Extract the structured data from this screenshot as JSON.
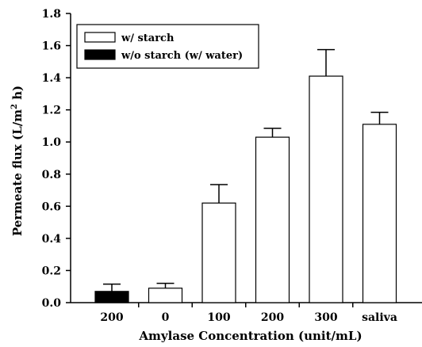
{
  "chart_data": {
    "type": "bar",
    "xlabel": "Amylase Concentration (unit/mL)",
    "ylabel_main": "Permeate flux (L/m",
    "ylabel_sup": "2",
    "ylabel_tail": " h)",
    "ylim": [
      0,
      1.8
    ],
    "yticks": [
      "0.0",
      "0.2",
      "0.4",
      "0.6",
      "0.8",
      "1.0",
      "1.2",
      "1.4",
      "1.6",
      "1.8"
    ],
    "categories": [
      "200",
      "0",
      "100",
      "200",
      "300",
      "saliva"
    ],
    "values": [
      0.07,
      0.09,
      0.62,
      1.03,
      1.41,
      1.11
    ],
    "errors": [
      0.045,
      0.03,
      0.115,
      0.055,
      0.165,
      0.075
    ],
    "bar_series": [
      1,
      0,
      0,
      0,
      0,
      0
    ],
    "series": [
      {
        "name": "w/ starch",
        "color": "#ffffff"
      },
      {
        "name": "w/o starch (w/ water)",
        "color": "#000000"
      }
    ],
    "legend_position": "top-left",
    "grid": false
  }
}
